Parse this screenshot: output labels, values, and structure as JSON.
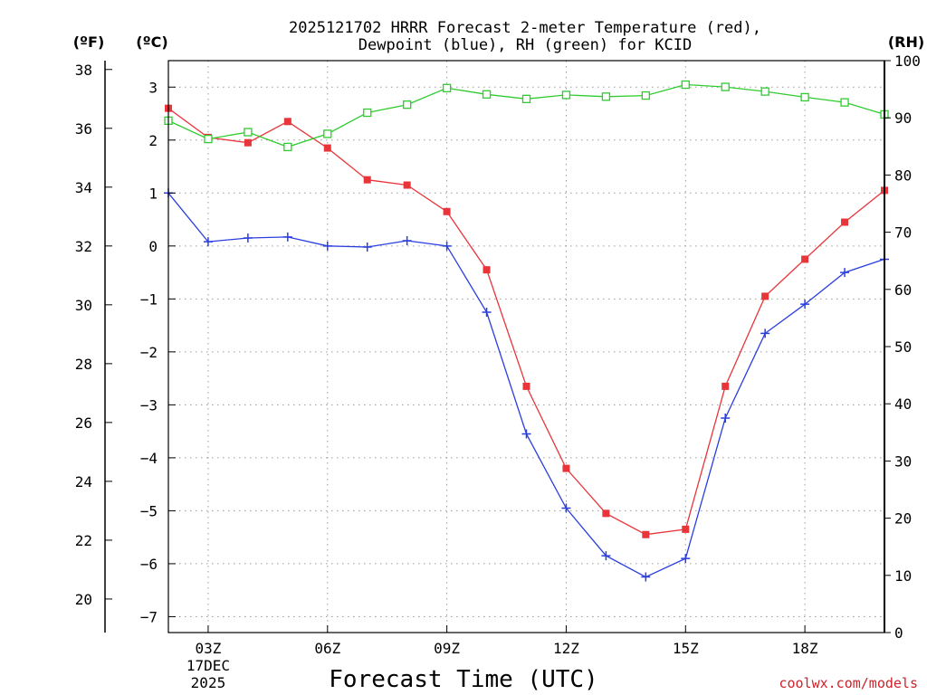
{
  "chart_data": {
    "type": "line",
    "title": "2025121702 HRRR Forecast 2-meter Temperature (red),",
    "subtitle": "Dewpoint (blue), RH (green) for KCID",
    "xlabel": "Forecast Time (UTC)",
    "credit": "coolwx.com/models",
    "unit_labels": {
      "fahrenheit": "(ºF)",
      "celsius": "(ºC)",
      "rh": "(RH)"
    },
    "x_hours": [
      2,
      3,
      4,
      5,
      6,
      7,
      8,
      9,
      10,
      11,
      12,
      13,
      14,
      15,
      16,
      17,
      18,
      19,
      20
    ],
    "x_range": [
      2,
      20
    ],
    "x_ticks": [
      {
        "hour": 3,
        "label": "03Z",
        "sublabel1": "17DEC",
        "sublabel2": "2025"
      },
      {
        "hour": 6,
        "label": "06Z"
      },
      {
        "hour": 9,
        "label": "09Z"
      },
      {
        "hour": 12,
        "label": "12Z"
      },
      {
        "hour": 15,
        "label": "15Z"
      },
      {
        "hour": 18,
        "label": "18Z"
      }
    ],
    "celsius_axis": {
      "range": [
        -7.3,
        3.5
      ],
      "ticks": [
        3,
        2,
        1,
        0,
        -1,
        -2,
        -3,
        -4,
        -5,
        -6,
        -7
      ],
      "tick_labels": [
        "3",
        "2",
        "1",
        "0",
        "−1",
        "−2",
        "−3",
        "−4",
        "−5",
        "−6",
        "−7"
      ]
    },
    "fahrenheit_axis": {
      "ticks": [
        38,
        36,
        34,
        32,
        30,
        28,
        26,
        24,
        22,
        20
      ],
      "tick_labels": [
        "38",
        "36",
        "34",
        "32",
        "30",
        "28",
        "26",
        "24",
        "22",
        "20"
      ]
    },
    "rh_axis": {
      "range": [
        0,
        100
      ],
      "ticks": [
        0,
        10,
        20,
        30,
        40,
        50,
        60,
        70,
        80,
        90,
        100
      ],
      "tick_labels": [
        "0",
        "10",
        "20",
        "30",
        "40",
        "50",
        "60",
        "70",
        "80",
        "90",
        "100"
      ]
    },
    "series": [
      {
        "name": "Temperature",
        "axis": "celsius",
        "color": "#e8353a",
        "marker": "filled-square",
        "values": [
          2.6,
          2.05,
          1.95,
          2.35,
          1.85,
          1.25,
          1.15,
          0.65,
          -0.45,
          -2.65,
          -4.2,
          -5.05,
          -5.45,
          -5.35,
          -2.65,
          -0.95,
          -0.25,
          0.45,
          1.05
        ]
      },
      {
        "name": "Dewpoint",
        "axis": "celsius",
        "color": "#2a3ee0",
        "marker": "plus",
        "values": [
          1.0,
          0.08,
          0.15,
          0.17,
          0.0,
          -0.02,
          0.1,
          0.0,
          -1.25,
          -3.55,
          -4.95,
          -5.85,
          -6.25,
          -5.9,
          -3.25,
          -1.65,
          -1.1,
          -0.5,
          -0.25
        ]
      },
      {
        "name": "RH",
        "axis": "rh",
        "color": "#2ecc2e",
        "marker": "open-square",
        "values": [
          89.5,
          86.3,
          87.5,
          84.9,
          87.2,
          90.9,
          92.3,
          95.2,
          94.1,
          93.3,
          94.0,
          93.7,
          93.9,
          95.8,
          95.4,
          94.6,
          93.6,
          92.7,
          90.6
        ]
      }
    ],
    "grid": true
  }
}
